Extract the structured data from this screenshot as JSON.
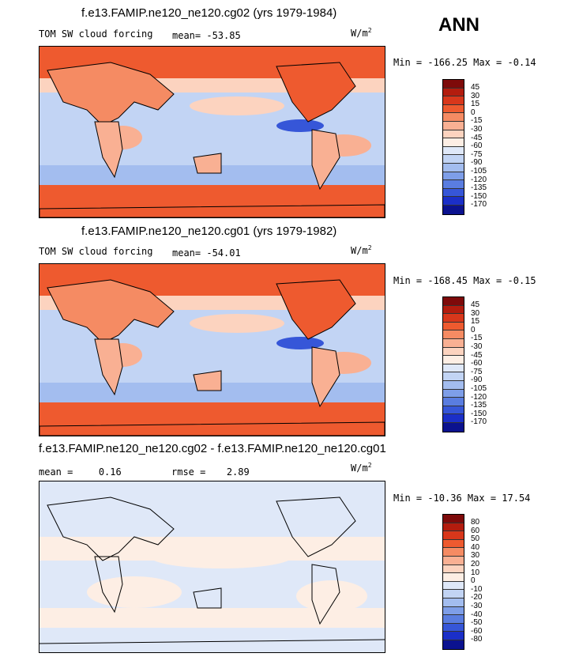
{
  "season": "ANN",
  "panels": [
    {
      "title": "f.e13.FAMIP.ne120_ne120.cg02 (yrs 1979-1984)",
      "left_label": "TOM SW cloud forcing",
      "stat_label": "mean=",
      "stat_value": "-53.85",
      "units": "W/m",
      "units_sup": "2",
      "minmax": "Min = -166.25 Max =  -0.14",
      "levels": [
        "45",
        "30",
        "15",
        "0",
        "-15",
        "-30",
        "-45",
        "-60",
        "-75",
        "-90",
        "-105",
        "-120",
        "-135",
        "-150",
        "-170"
      ],
      "colors": [
        "#7e0a0a",
        "#b31c0e",
        "#d8371b",
        "#ee5a2f",
        "#f58b63",
        "#f9b093",
        "#fcd3bf",
        "#fdeee4",
        "#dfe8f8",
        "#c2d4f4",
        "#a3bdef",
        "#7e9ee8",
        "#5a7de0",
        "#3656d8",
        "#1b2fc8",
        "#0b128f"
      ]
    },
    {
      "title": "f.e13.FAMIP.ne120_ne120.cg01 (yrs 1979-1982)",
      "left_label": "TOM SW cloud forcing",
      "stat_label": "mean=",
      "stat_value": "-54.01",
      "units": "W/m",
      "units_sup": "2",
      "minmax": "Min = -168.45 Max =  -0.15",
      "levels": [
        "45",
        "30",
        "15",
        "0",
        "-15",
        "-30",
        "-45",
        "-60",
        "-75",
        "-90",
        "-105",
        "-120",
        "-135",
        "-150",
        "-170"
      ],
      "colors": [
        "#7e0a0a",
        "#b31c0e",
        "#d8371b",
        "#ee5a2f",
        "#f58b63",
        "#f9b093",
        "#fcd3bf",
        "#fdeee4",
        "#dfe8f8",
        "#c2d4f4",
        "#a3bdef",
        "#7e9ee8",
        "#5a7de0",
        "#3656d8",
        "#1b2fc8",
        "#0b128f"
      ]
    },
    {
      "title": "f.e13.FAMIP.ne120_ne120.cg02 - f.e13.FAMIP.ne120_ne120.cg01",
      "mean_label": "mean =",
      "mean_value": "0.16",
      "rmse_label": "rmse =",
      "rmse_value": "2.89",
      "units": "W/m",
      "units_sup": "2",
      "minmax": "Min = -10.36 Max =  17.54",
      "levels": [
        "80",
        "60",
        "50",
        "40",
        "30",
        "20",
        "10",
        "0",
        "-10",
        "-20",
        "-30",
        "-40",
        "-50",
        "-60",
        "-80"
      ],
      "colors": [
        "#7e0a0a",
        "#b31c0e",
        "#d8371b",
        "#ee5a2f",
        "#f58b63",
        "#f9b093",
        "#fcd3bf",
        "#fdeee4",
        "#dfe8f8",
        "#c2d4f4",
        "#a3bdef",
        "#7e9ee8",
        "#5a7de0",
        "#3656d8",
        "#1b2fc8",
        "#0b128f"
      ]
    }
  ]
}
